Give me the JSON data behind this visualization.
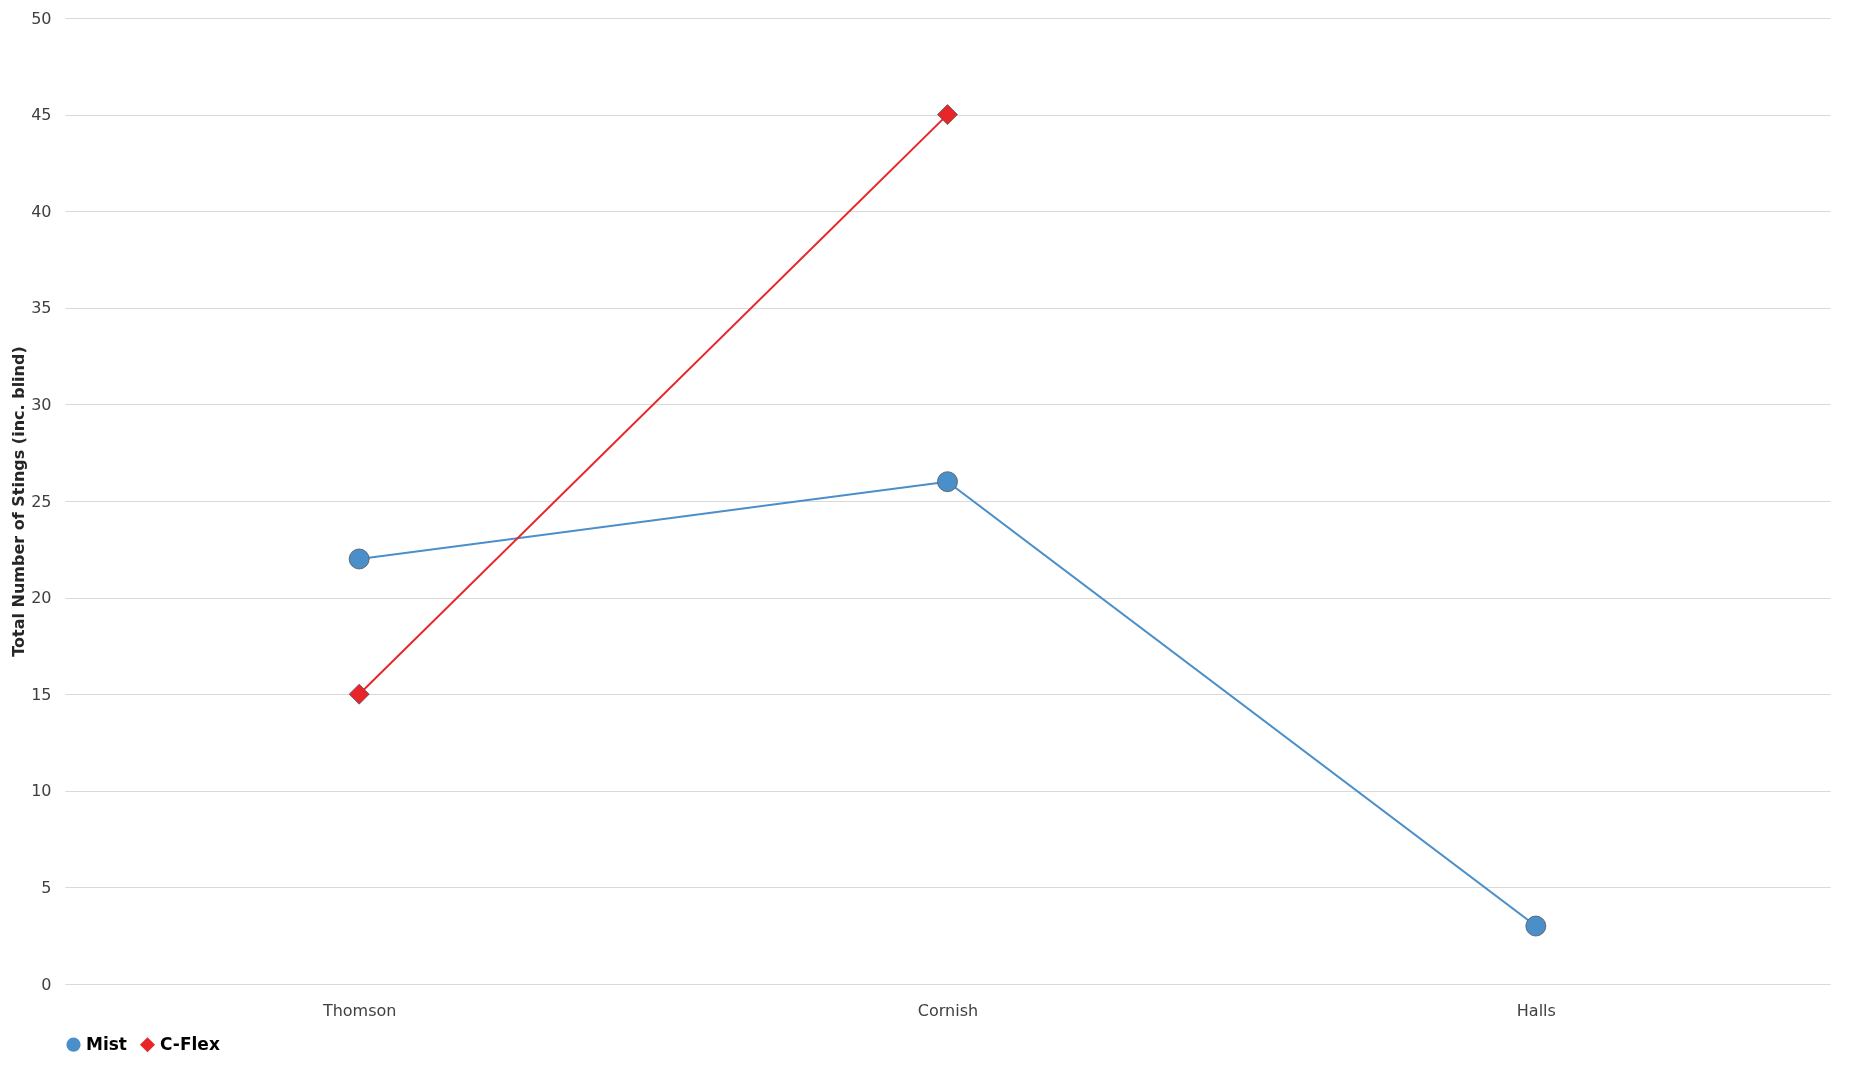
{
  "chart_data": {
    "type": "line",
    "ylabel": "Total Number of Stings (inc. blind)",
    "categories": [
      "Thomson",
      "Cornish",
      "Halls"
    ],
    "series": [
      {
        "name": "Mist",
        "color": "#4a8fc9",
        "marker": "circle",
        "values": [
          22,
          26,
          3
        ]
      },
      {
        "name": "C-Flex",
        "color": "#e8262a",
        "marker": "diamond",
        "values": [
          15,
          45,
          null
        ]
      }
    ],
    "ylim": [
      0,
      50
    ],
    "yticks": [
      0,
      5,
      10,
      15,
      20,
      25,
      30,
      35,
      40,
      45,
      50
    ],
    "grid": "y",
    "legend": "bottom",
    "line_style": "solid"
  }
}
